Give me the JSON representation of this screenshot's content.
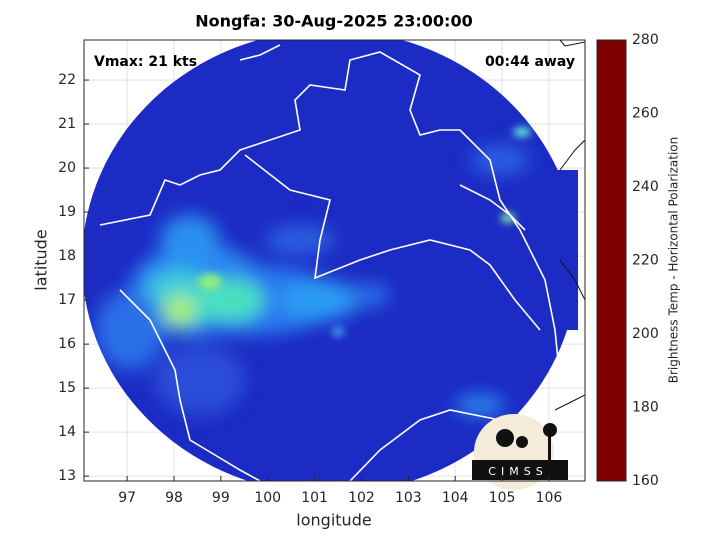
{
  "chart_data": {
    "type": "heatmap",
    "title": "Nongfa: 30-Aug-2025 23:00:00",
    "xlabel": "longitude",
    "ylabel": "latitude",
    "annotations": [
      "Vmax: 21 kts",
      "00:44 away"
    ],
    "xlim": [
      96.08,
      106.77
    ],
    "ylim": [
      12.89,
      22.91
    ],
    "xticks": [
      97,
      98,
      99,
      100,
      101,
      102,
      103,
      104,
      105,
      106
    ],
    "yticks": [
      13,
      14,
      15,
      16,
      17,
      18,
      19,
      20,
      21,
      22
    ],
    "grid": true,
    "colorbar": {
      "label": "Brightness Temp - Horizontal Polarization",
      "lim": [
        160,
        280
      ],
      "ticks": [
        160,
        180,
        200,
        220,
        240,
        260,
        280
      ],
      "colormap": "jet"
    },
    "logo": "CIMSS"
  }
}
